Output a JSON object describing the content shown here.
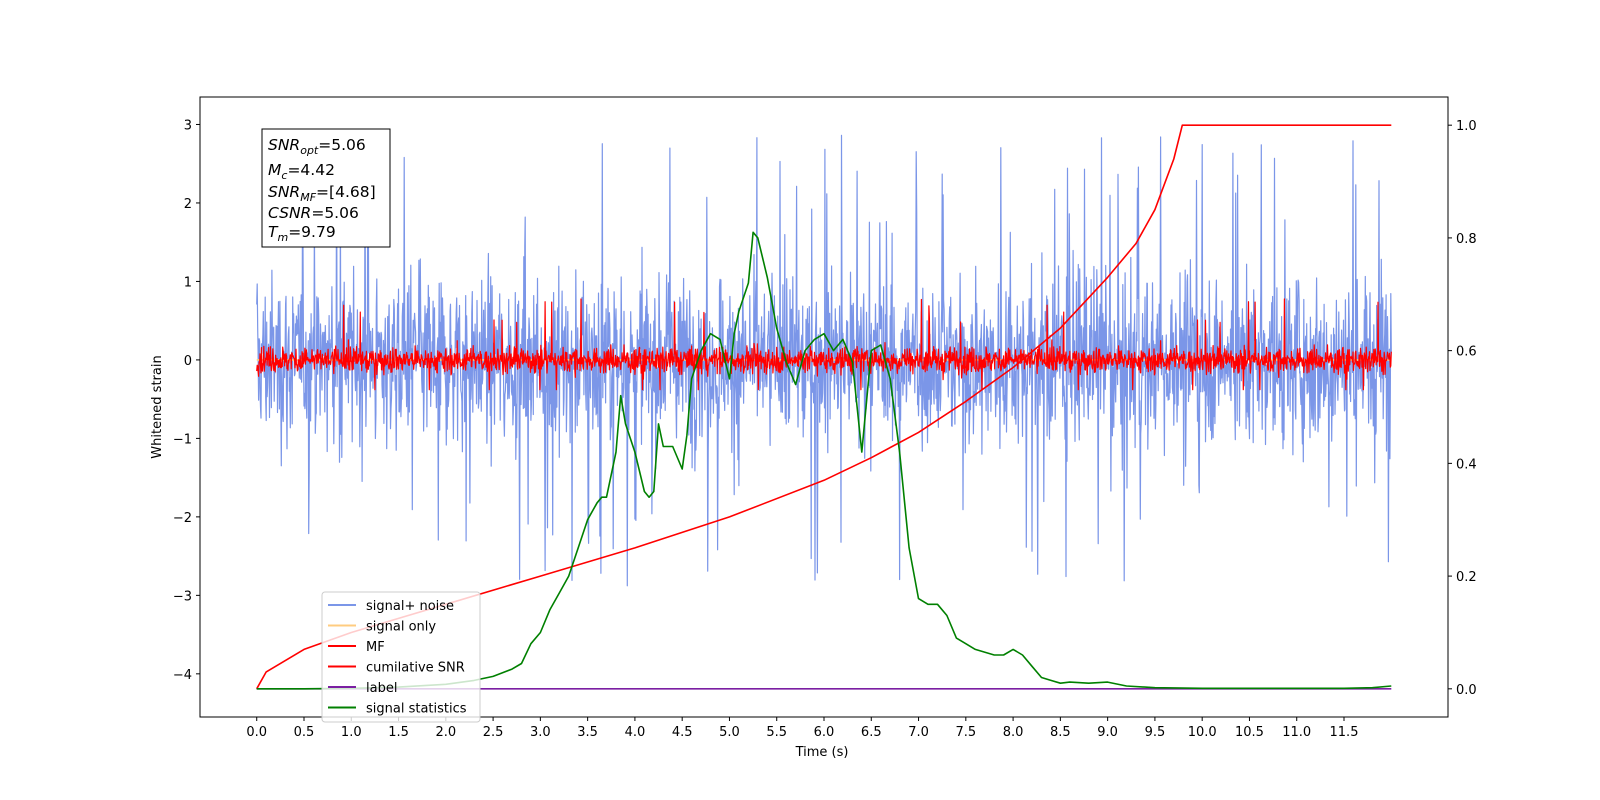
{
  "chart_data": {
    "type": "line",
    "xlabel": "Time (s)",
    "ylabel": "Whitened strain",
    "xlim": [
      -0.6,
      12.6
    ],
    "ylim": [
      -4.55,
      3.35
    ],
    "y2lim": [
      -0.05,
      1.05
    ],
    "x_ticks": [
      "0.0",
      "0.5",
      "1.0",
      "1.5",
      "2.0",
      "2.5",
      "3.0",
      "3.5",
      "4.0",
      "4.5",
      "5.0",
      "5.5",
      "6.0",
      "6.5",
      "7.0",
      "7.5",
      "8.0",
      "8.5",
      "9.0",
      "9.5",
      "10.0",
      "10.5",
      "11.0",
      "11.5"
    ],
    "y_ticks": [
      "3",
      "2",
      "1",
      "0",
      "−1",
      "−2",
      "−3",
      "−4"
    ],
    "y2_ticks": [
      "1.0",
      "0.8",
      "0.6",
      "0.4",
      "0.2",
      "0.0"
    ],
    "legend_position": "lower-left",
    "info_box": {
      "snr_opt": {
        "sym": "SNR",
        "sub": "opt",
        "val": "=5.06"
      },
      "mc": {
        "sym": "M",
        "sub": "c",
        "val": "=4.42"
      },
      "snr_mf": {
        "sym": "SNR",
        "sub": "MF",
        "val": "=[4.68]"
      },
      "csnr": {
        "sym": "CSNR",
        "sub": "",
        "val": "=5.06"
      },
      "tm": {
        "sym": "T",
        "sub": "m",
        "val": "=9.79"
      }
    },
    "series": [
      {
        "name": "signal+ noise",
        "color": "#7b96e8",
        "axis": "left",
        "description_kind": "noise",
        "x_range": [
          0.0,
          12.0
        ],
        "typical_range": [
          -1.9,
          1.9
        ],
        "max": 3.0,
        "min": -4.15
      },
      {
        "name": "signal only",
        "color": "#ffcc80",
        "axis": "left",
        "x_range": [
          0.0,
          12.0
        ],
        "values_constant": 0.0
      },
      {
        "name": "MF",
        "color": "#ff0000",
        "axis": "left",
        "description_kind": "noise",
        "x_range": [
          0.0,
          12.0
        ],
        "typical_range": [
          -0.35,
          0.4
        ],
        "max": 0.9,
        "min": -0.38
      },
      {
        "name": "cumilative SNR",
        "color": "#ff0000",
        "axis": "right",
        "x": [
          0.0,
          0.1,
          0.5,
          1.0,
          1.5,
          2.0,
          3.0,
          4.0,
          5.0,
          6.0,
          6.5,
          7.0,
          7.5,
          8.0,
          8.5,
          9.0,
          9.3,
          9.5,
          9.7,
          9.79,
          12.0
        ],
        "y": [
          0.0,
          0.03,
          0.07,
          0.1,
          0.125,
          0.15,
          0.2,
          0.25,
          0.305,
          0.37,
          0.41,
          0.455,
          0.51,
          0.57,
          0.64,
          0.73,
          0.79,
          0.85,
          0.94,
          1.0,
          1.0
        ]
      },
      {
        "name": "label",
        "color": "#7b1fa2",
        "axis": "right",
        "x": [
          0.0,
          12.0
        ],
        "y": [
          0.0,
          0.0
        ]
      },
      {
        "name": "signal statistics",
        "color": "#008000",
        "axis": "right",
        "x": [
          0.0,
          0.5,
          1.0,
          1.5,
          2.0,
          2.3,
          2.5,
          2.7,
          2.8,
          2.9,
          3.0,
          3.1,
          3.2,
          3.3,
          3.4,
          3.5,
          3.6,
          3.65,
          3.7,
          3.8,
          3.85,
          3.9,
          4.0,
          4.1,
          4.15,
          4.2,
          4.25,
          4.3,
          4.35,
          4.4,
          4.5,
          4.55,
          4.6,
          4.7,
          4.8,
          4.9,
          5.0,
          5.05,
          5.1,
          5.2,
          5.25,
          5.3,
          5.4,
          5.5,
          5.6,
          5.7,
          5.8,
          5.9,
          6.0,
          6.1,
          6.2,
          6.3,
          6.4,
          6.5,
          6.6,
          6.7,
          6.8,
          6.9,
          7.0,
          7.1,
          7.2,
          7.3,
          7.4,
          7.5,
          7.6,
          7.8,
          7.9,
          8.0,
          8.1,
          8.2,
          8.3,
          8.4,
          8.5,
          8.6,
          8.8,
          9.0,
          9.2,
          9.5,
          10.0,
          10.5,
          11.0,
          11.5,
          11.8,
          12.0
        ],
        "y": [
          0.0,
          0.0,
          0.001,
          0.003,
          0.008,
          0.015,
          0.022,
          0.035,
          0.045,
          0.08,
          0.1,
          0.14,
          0.17,
          0.2,
          0.25,
          0.3,
          0.33,
          0.34,
          0.34,
          0.42,
          0.52,
          0.47,
          0.42,
          0.35,
          0.34,
          0.35,
          0.47,
          0.43,
          0.43,
          0.43,
          0.39,
          0.45,
          0.55,
          0.6,
          0.63,
          0.62,
          0.55,
          0.63,
          0.67,
          0.72,
          0.81,
          0.8,
          0.73,
          0.64,
          0.58,
          0.54,
          0.6,
          0.62,
          0.63,
          0.6,
          0.62,
          0.58,
          0.42,
          0.6,
          0.61,
          0.55,
          0.42,
          0.25,
          0.16,
          0.15,
          0.15,
          0.13,
          0.09,
          0.08,
          0.07,
          0.06,
          0.06,
          0.07,
          0.06,
          0.04,
          0.02,
          0.015,
          0.01,
          0.012,
          0.01,
          0.012,
          0.005,
          0.002,
          0.001,
          0.001,
          0.001,
          0.001,
          0.002,
          0.005
        ]
      }
    ]
  }
}
